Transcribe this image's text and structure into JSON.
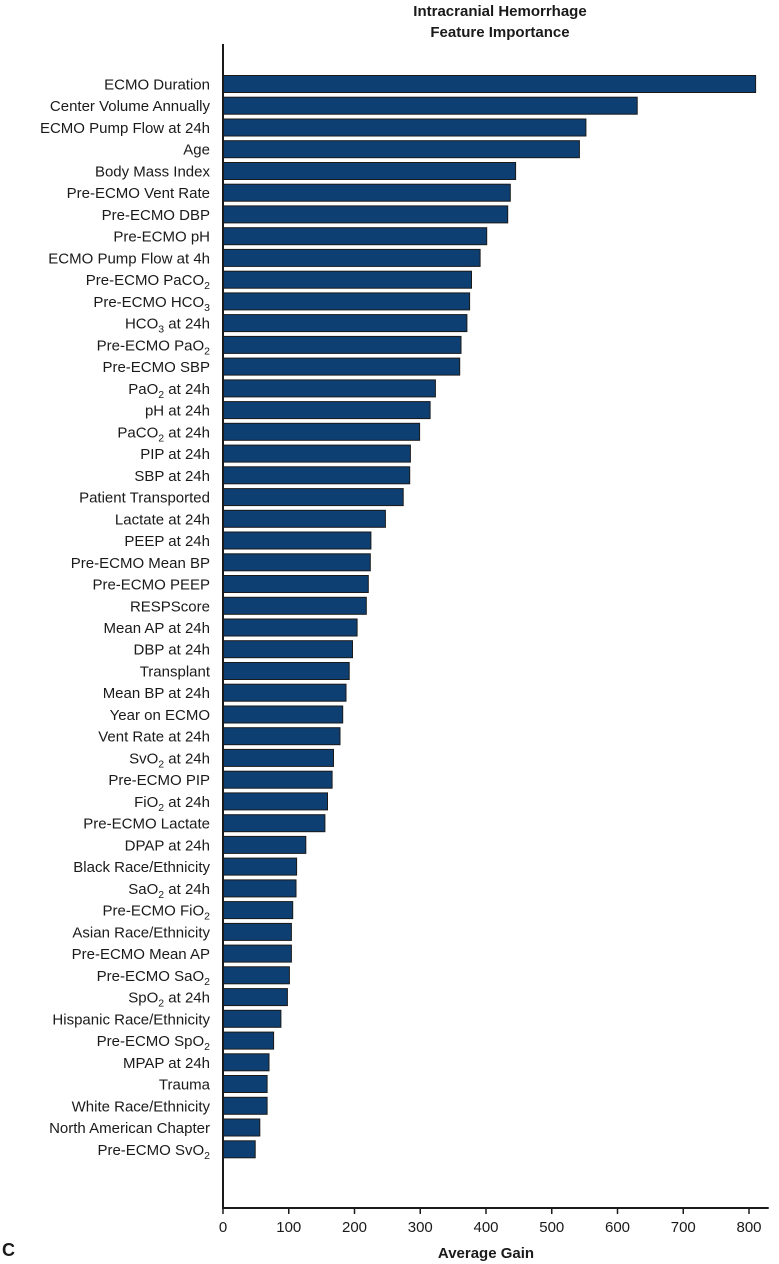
{
  "panel_letter": "C",
  "chart_data": {
    "type": "bar",
    "orientation": "horizontal",
    "title": [
      "Intracranial Hemorrhage",
      "Feature Importance"
    ],
    "xlabel": "Average Gain",
    "ylabel": "",
    "xlim": [
      0,
      830
    ],
    "xticks": [
      0,
      100,
      200,
      300,
      400,
      500,
      600,
      700,
      800
    ],
    "bar_color": "#0d3f73",
    "bar_edge_color": "#1a1a1a",
    "grid": false,
    "categories": [
      {
        "text": "ECMO Duration"
      },
      {
        "text": "Center Volume Annually"
      },
      {
        "text": "ECMO Pump Flow at 24h"
      },
      {
        "text": "Age"
      },
      {
        "text": "Body Mass Index"
      },
      {
        "text": "Pre-ECMO Vent Rate"
      },
      {
        "text": "Pre-ECMO DBP"
      },
      {
        "text": "Pre-ECMO pH"
      },
      {
        "text": "ECMO Pump Flow at 4h"
      },
      {
        "text": "Pre-ECMO PaCO",
        "sub": "2"
      },
      {
        "text": "Pre-ECMO HCO",
        "sub": "3"
      },
      {
        "text": "HCO",
        "sub": "3",
        "suffix": " at 24h"
      },
      {
        "text": "Pre-ECMO PaO",
        "sub": "2"
      },
      {
        "text": "Pre-ECMO SBP"
      },
      {
        "text": "PaO",
        "sub": "2",
        "suffix": " at 24h"
      },
      {
        "text": "pH at 24h"
      },
      {
        "text": "PaCO",
        "sub": "2",
        "suffix": " at 24h"
      },
      {
        "text": "PIP at 24h"
      },
      {
        "text": "SBP at 24h"
      },
      {
        "text": "Patient Transported"
      },
      {
        "text": "Lactate at 24h"
      },
      {
        "text": "PEEP at 24h"
      },
      {
        "text": "Pre-ECMO Mean BP"
      },
      {
        "text": "Pre-ECMO PEEP"
      },
      {
        "text": "RESPScore"
      },
      {
        "text": "Mean AP at 24h"
      },
      {
        "text": "DBP at 24h"
      },
      {
        "text": "Transplant"
      },
      {
        "text": "Mean BP at 24h"
      },
      {
        "text": "Year on ECMO"
      },
      {
        "text": "Vent Rate at 24h"
      },
      {
        "text": "SvO",
        "sub": "2",
        "suffix": " at 24h"
      },
      {
        "text": "Pre-ECMO PIP"
      },
      {
        "text": "FiO",
        "sub": "2",
        "suffix": " at 24h"
      },
      {
        "text": "Pre-ECMO Lactate"
      },
      {
        "text": "DPAP at 24h"
      },
      {
        "text": "Black Race/Ethnicity"
      },
      {
        "text": "SaO",
        "sub": "2",
        "suffix": " at 24h"
      },
      {
        "text": "Pre-ECMO FiO",
        "sub": "2"
      },
      {
        "text": "Asian Race/Ethnicity"
      },
      {
        "text": "Pre-ECMO Mean AP"
      },
      {
        "text": "Pre-ECMO SaO",
        "sub": "2"
      },
      {
        "text": "SpO",
        "sub": "2",
        "suffix": " at 24h"
      },
      {
        "text": "Hispanic Race/Ethnicity"
      },
      {
        "text": "Pre-ECMO SpO",
        "sub": "2"
      },
      {
        "text": "MPAP at 24h"
      },
      {
        "text": "Trauma"
      },
      {
        "text": "White Race/Ethnicity"
      },
      {
        "text": "North American Chapter"
      },
      {
        "text": "Pre-ECMO SvO",
        "sub": "2"
      }
    ],
    "values": [
      810,
      630,
      552,
      542,
      445,
      437,
      433,
      401,
      391,
      378,
      375,
      371,
      362,
      360,
      323,
      315,
      299,
      285,
      284,
      274,
      247,
      225,
      224,
      221,
      218,
      204,
      197,
      192,
      187,
      182,
      178,
      168,
      166,
      159,
      155,
      126,
      112,
      111,
      106,
      104,
      104,
      101,
      98,
      88,
      77,
      70,
      67,
      67,
      56,
      49
    ]
  }
}
